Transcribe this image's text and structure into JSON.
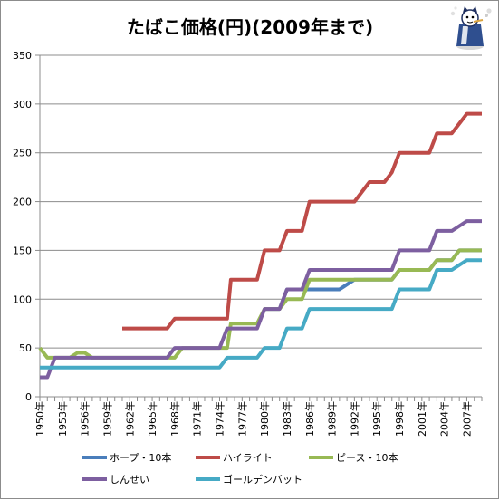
{
  "chart_data": {
    "type": "line",
    "title": "たばこ価格(円)(2009年まで)",
    "xlabel": "",
    "ylabel": "",
    "ylim": [
      0,
      350
    ],
    "yticks": [
      0,
      50,
      100,
      150,
      200,
      250,
      300,
      350
    ],
    "xlim": [
      1950,
      2009
    ],
    "xtick_labels": [
      "1950年",
      "1953年",
      "1956年",
      "1959年",
      "1962年",
      "1965年",
      "1968年",
      "1971年",
      "1974年",
      "1977年",
      "1980年",
      "1983年",
      "1986年",
      "1989年",
      "1992年",
      "1995年",
      "1998年",
      "2001年",
      "2004年",
      "2007年"
    ],
    "grid": "horizontal",
    "legend_position": "bottom",
    "series": [
      {
        "name": "ホープ・10本",
        "color": "#4a7ebb",
        "points": [
          [
            1980,
            90
          ],
          [
            1982,
            90
          ],
          [
            1983,
            110
          ],
          [
            1985,
            110
          ],
          [
            1986,
            110
          ],
          [
            1990,
            110
          ],
          [
            1991,
            115
          ],
          [
            1992,
            120
          ],
          [
            1997,
            120
          ],
          [
            1998,
            130
          ],
          [
            2002,
            130
          ],
          [
            2003,
            140
          ],
          [
            2005,
            140
          ],
          [
            2006,
            150
          ],
          [
            2009,
            150
          ]
        ]
      },
      {
        "name": "ハイライト",
        "color": "#be4b48",
        "points": [
          [
            1961,
            70
          ],
          [
            1967,
            70
          ],
          [
            1968,
            80
          ],
          [
            1975,
            80
          ],
          [
            1975.5,
            120
          ],
          [
            1979,
            120
          ],
          [
            1980,
            150
          ],
          [
            1982,
            150
          ],
          [
            1983,
            170
          ],
          [
            1985,
            170
          ],
          [
            1986,
            200
          ],
          [
            1992,
            200
          ],
          [
            1994,
            220
          ],
          [
            1996,
            220
          ],
          [
            1997,
            230
          ],
          [
            1998,
            250
          ],
          [
            2002,
            250
          ],
          [
            2003,
            270
          ],
          [
            2005,
            270
          ],
          [
            2006,
            280
          ],
          [
            2007,
            290
          ],
          [
            2009,
            290
          ]
        ]
      },
      {
        "name": "ピース・10本",
        "color": "#98b954",
        "points": [
          [
            1950,
            50
          ],
          [
            1951,
            40
          ],
          [
            1954,
            40
          ],
          [
            1955,
            45
          ],
          [
            1956,
            45
          ],
          [
            1957,
            40
          ],
          [
            1968,
            40
          ],
          [
            1969,
            50
          ],
          [
            1975,
            50
          ],
          [
            1975.5,
            75
          ],
          [
            1979,
            75
          ],
          [
            1980,
            90
          ],
          [
            1982,
            90
          ],
          [
            1983,
            100
          ],
          [
            1985,
            100
          ],
          [
            1986,
            120
          ],
          [
            1997,
            120
          ],
          [
            1998,
            130
          ],
          [
            2002,
            130
          ],
          [
            2003,
            140
          ],
          [
            2005,
            140
          ],
          [
            2006,
            150
          ],
          [
            2009,
            150
          ]
        ]
      },
      {
        "name": "しんせい",
        "color": "#7d5fa0",
        "points": [
          [
            1950,
            20
          ],
          [
            1951,
            20
          ],
          [
            1952,
            40
          ],
          [
            1967,
            40
          ],
          [
            1968,
            50
          ],
          [
            1974,
            50
          ],
          [
            1975,
            70
          ],
          [
            1979,
            70
          ],
          [
            1980,
            90
          ],
          [
            1982,
            90
          ],
          [
            1983,
            110
          ],
          [
            1985,
            110
          ],
          [
            1986,
            130
          ],
          [
            1997,
            130
          ],
          [
            1998,
            150
          ],
          [
            2002,
            150
          ],
          [
            2003,
            170
          ],
          [
            2005,
            170
          ],
          [
            2006,
            175
          ],
          [
            2007,
            180
          ],
          [
            2009,
            180
          ]
        ]
      },
      {
        "name": "ゴールデンバット",
        "color": "#46aac5",
        "points": [
          [
            1950,
            30
          ],
          [
            1974,
            30
          ],
          [
            1975,
            40
          ],
          [
            1979,
            40
          ],
          [
            1980,
            50
          ],
          [
            1982,
            50
          ],
          [
            1983,
            70
          ],
          [
            1985,
            70
          ],
          [
            1986,
            90
          ],
          [
            1997,
            90
          ],
          [
            1998,
            110
          ],
          [
            2002,
            110
          ],
          [
            2003,
            130
          ],
          [
            2005,
            130
          ],
          [
            2006,
            135
          ],
          [
            2007,
            140
          ],
          [
            2009,
            140
          ]
        ]
      }
    ]
  },
  "illustration": {
    "icon": "smoking-cat-mascot-icon"
  }
}
